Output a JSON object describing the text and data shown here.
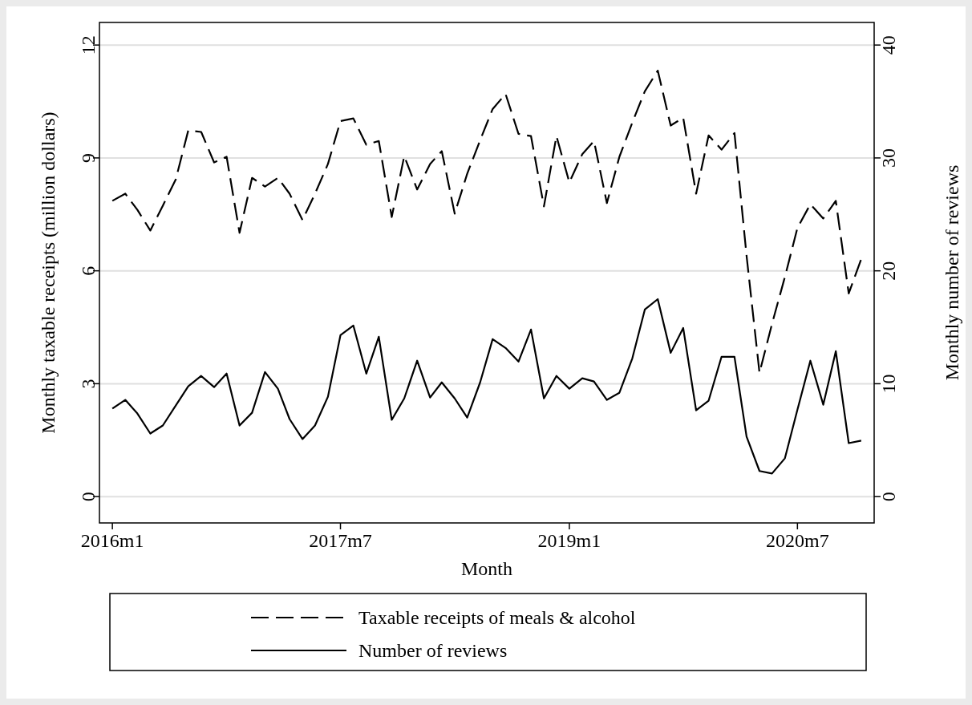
{
  "chart_data": {
    "type": "line",
    "xlabel": "Month",
    "ylabel": "Monthly taxable receipts (million dollars)",
    "y2label": "Monthly number of reviews",
    "x": [
      "2016-01",
      "2016-02",
      "2016-03",
      "2016-04",
      "2016-05",
      "2016-06",
      "2016-07",
      "2016-08",
      "2016-09",
      "2016-10",
      "2016-11",
      "2016-12",
      "2017-01",
      "2017-02",
      "2017-03",
      "2017-04",
      "2017-05",
      "2017-06",
      "2017-07",
      "2017-08",
      "2017-09",
      "2017-10",
      "2017-11",
      "2017-12",
      "2018-01",
      "2018-02",
      "2018-03",
      "2018-04",
      "2018-05",
      "2018-06",
      "2018-07",
      "2018-08",
      "2018-09",
      "2018-10",
      "2018-11",
      "2018-12",
      "2019-01",
      "2019-02",
      "2019-03",
      "2019-04",
      "2019-05",
      "2019-06",
      "2019-07",
      "2019-08",
      "2019-09",
      "2019-10",
      "2019-11",
      "2019-12",
      "2020-01",
      "2020-02",
      "2020-03",
      "2020-04",
      "2020-05",
      "2020-06",
      "2020-07",
      "2020-08",
      "2020-09",
      "2020-10",
      "2020-11",
      "2020-12"
    ],
    "series": [
      {
        "name": "Taxable receipts of meals & alcohol",
        "color": "#000000",
        "line_style": "dashed",
        "values": [
          7.86,
          8.05,
          7.62,
          7.07,
          7.73,
          8.43,
          9.73,
          9.69,
          8.88,
          9.03,
          7.01,
          8.47,
          8.24,
          8.47,
          8.05,
          7.35,
          8.05,
          8.84,
          9.98,
          10.05,
          9.35,
          9.45,
          7.43,
          9.05,
          8.16,
          8.84,
          9.18,
          7.52,
          8.58,
          9.47,
          10.3,
          10.7,
          9.64,
          9.58,
          7.71,
          9.58,
          8.35,
          9.1,
          9.45,
          7.8,
          9.03,
          9.94,
          10.77,
          11.32,
          9.86,
          10.07,
          8.05,
          9.6,
          9.22,
          9.66,
          6.4,
          3.29,
          4.59,
          5.84,
          7.14,
          7.77,
          7.39,
          7.86,
          5.4,
          6.31
        ]
      },
      {
        "name": "Number of reviews",
        "color": "#000000",
        "line_style": "solid",
        "axis": "y2",
        "values": [
          7.8,
          8.57,
          7.36,
          5.59,
          6.3,
          8.07,
          9.77,
          10.69,
          9.7,
          10.9,
          6.3,
          7.43,
          11.04,
          9.56,
          6.87,
          5.1,
          6.3,
          8.85,
          14.3,
          15.15,
          10.9,
          14.16,
          6.8,
          8.7,
          12.04,
          8.78,
          10.12,
          8.7,
          7.0,
          10.12,
          13.95,
          13.17,
          11.96,
          14.8,
          8.7,
          10.69,
          9.56,
          10.48,
          10.2,
          8.57,
          9.2,
          12.25,
          16.57,
          17.49,
          12.74,
          14.94,
          7.65,
          8.5,
          12.39,
          12.39,
          5.31,
          2.27,
          2.05,
          3.4,
          7.7,
          12.04,
          8.14,
          12.88,
          4.74,
          4.96
        ]
      }
    ],
    "xlim": [
      "2015-12",
      "2021-01"
    ],
    "xticks": [
      {
        "value": "2016-01",
        "label": "2016m1"
      },
      {
        "value": "2017-07",
        "label": "2017m7"
      },
      {
        "value": "2019-01",
        "label": "2019m1"
      },
      {
        "value": "2020-07",
        "label": "2020m7"
      }
    ],
    "ylim": [
      -0.7,
      12.6
    ],
    "yticks": [
      0,
      3,
      6,
      9,
      12
    ],
    "y2lim": [
      -2.33,
      42
    ],
    "y2ticks": [
      0,
      10,
      20,
      30,
      40
    ],
    "grid": "y",
    "legend": "bottom",
    "marker": "none"
  }
}
